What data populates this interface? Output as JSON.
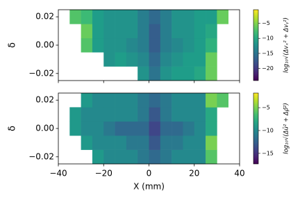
{
  "chart_data": [
    {
      "type": "heatmap",
      "x": [
        -40,
        -35,
        -30,
        -25,
        -20,
        -15,
        -10,
        -5,
        0,
        5,
        10,
        15,
        20,
        25,
        30,
        35,
        40
      ],
      "y": [
        -0.025,
        -0.015,
        -0.005,
        0.005,
        0.015,
        0.025
      ],
      "z": [
        [
          null,
          null,
          null,
          null,
          null,
          null,
          null,
          -12,
          -15,
          -12,
          -11,
          -11,
          -10,
          -6,
          null,
          null
        ],
        [
          null,
          null,
          null,
          null,
          -12,
          -11,
          -12,
          -13,
          -16,
          -13,
          -12,
          -11,
          -11,
          -6,
          null,
          null
        ],
        [
          null,
          null,
          -7,
          -11,
          -12,
          -12,
          -13,
          -14,
          -17,
          -14,
          -13,
          -12,
          -11,
          -9,
          null,
          null
        ],
        [
          null,
          null,
          -6,
          -11,
          -12,
          -12,
          -12,
          -14,
          -17,
          -14,
          -12,
          -12,
          -11,
          -10,
          null,
          null
        ],
        [
          null,
          -7,
          -8,
          -11,
          -12,
          -12,
          -12,
          -14,
          -16,
          -14,
          -12,
          -12,
          -11,
          -11,
          -6,
          null
        ]
      ],
      "xlim": [
        -40,
        40
      ],
      "xticks": [
        -40,
        -20,
        0,
        20,
        40
      ],
      "ylim": [
        -0.025,
        0.025
      ],
      "yticks": [
        {
          "value": 0.02,
          "label": "0.02"
        },
        {
          "value": 0,
          "label": "0.00"
        },
        {
          "value": -0.02,
          "label": "−0.02"
        }
      ],
      "ylabel": "δ",
      "colormap": "viridis",
      "clim": [
        -24,
        -0.5
      ],
      "cticks": [
        {
          "value": -5,
          "label": "−5"
        },
        {
          "value": -10,
          "label": "−10"
        },
        {
          "value": -15,
          "label": "−15"
        },
        {
          "value": -20,
          "label": "−20"
        }
      ],
      "clabel": "log₁₀√(Δvₓ² + Δvᵧ²)"
    },
    {
      "type": "heatmap",
      "x": [
        -40,
        -35,
        -30,
        -25,
        -20,
        -15,
        -10,
        -5,
        0,
        5,
        10,
        15,
        20,
        25,
        30,
        35,
        40
      ],
      "y": [
        -0.025,
        -0.015,
        -0.005,
        0.005,
        0.015,
        0.025
      ],
      "z": [
        [
          null,
          null,
          null,
          -9,
          -10,
          -10,
          -10,
          -11,
          -12,
          -11,
          -10,
          -10,
          -10,
          -6,
          null,
          null
        ],
        [
          null,
          null,
          -9,
          -10,
          -10,
          -10,
          -11,
          -11,
          -13,
          -11,
          -11,
          -10,
          -10,
          -5,
          null,
          null
        ],
        [
          null,
          -9,
          -10,
          -10,
          -11,
          -12,
          -12,
          -12,
          -14,
          -12,
          -12,
          -11,
          -10,
          -8,
          null,
          null
        ],
        [
          null,
          -9,
          -10,
          -10,
          -10,
          -10,
          -10,
          -11,
          -13,
          -11,
          -10,
          -10,
          -10,
          -8,
          null,
          null
        ],
        [
          null,
          null,
          -9,
          -10,
          -10,
          -10,
          -10,
          -11,
          -12,
          -11,
          -10,
          -10,
          -10,
          -5,
          -6,
          null
        ]
      ],
      "xlim": [
        -40,
        40
      ],
      "xticks": [
        {
          "value": -40,
          "label": "−40"
        },
        {
          "value": -20,
          "label": "−20"
        },
        {
          "value": 0,
          "label": "0"
        },
        {
          "value": 20,
          "label": "20"
        },
        {
          "value": 40,
          "label": "40"
        }
      ],
      "xlabel": "X (mm)",
      "ylim": [
        -0.025,
        0.025
      ],
      "yticks": [
        {
          "value": 0.02,
          "label": "0.02"
        },
        {
          "value": 0,
          "label": "0.00"
        },
        {
          "value": -0.02,
          "label": "−0.02"
        }
      ],
      "ylabel": "δ",
      "colormap": "viridis",
      "clim": [
        -17.3,
        -1.8
      ],
      "cticks": [
        {
          "value": -5,
          "label": "−5"
        },
        {
          "value": -10,
          "label": "−10"
        },
        {
          "value": -15,
          "label": "−15"
        }
      ],
      "clabel": "log₁₀√(Δū² + Δρ̄²)"
    }
  ]
}
